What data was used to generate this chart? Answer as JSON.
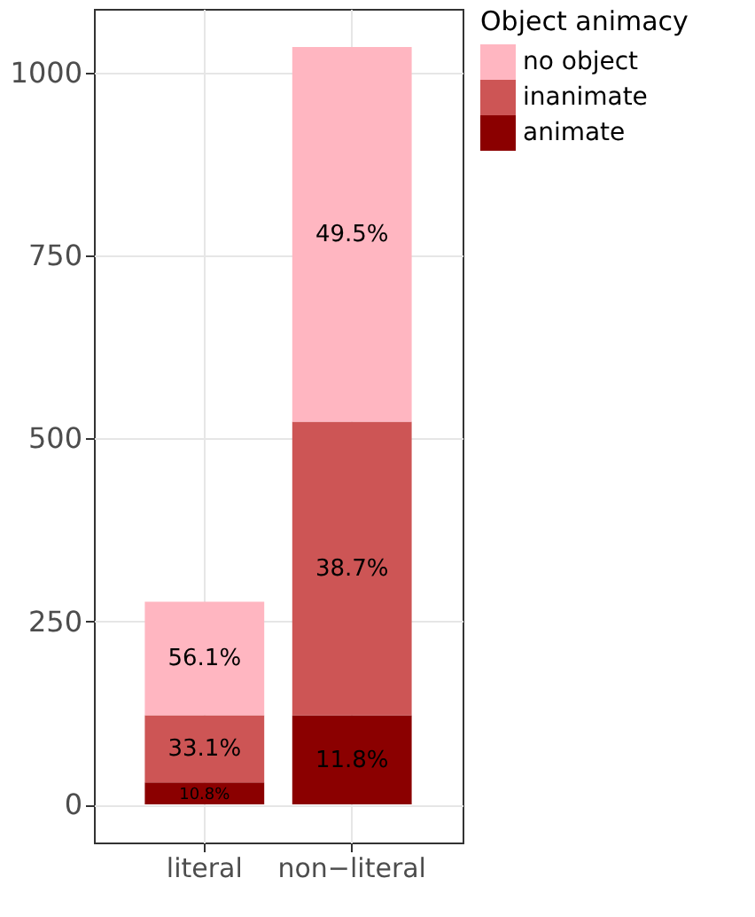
{
  "chart_data": {
    "type": "bar",
    "stacked": true,
    "categories": [
      "literal",
      "non−literal"
    ],
    "series": [
      {
        "name": "animate",
        "color": "#8b0000",
        "values": [
          30,
          122
        ]
      },
      {
        "name": "inanimate",
        "color": "#cd5555",
        "values": [
          92,
          401
        ]
      },
      {
        "name": "no object",
        "color": "#ffb6c1",
        "values": [
          155,
          512
        ]
      }
    ],
    "annotations": [
      "10.8%",
      "11.8%",
      "33.1%",
      "38.7%",
      "56.1%",
      "49.5%"
    ],
    "legend_title": "Object animacy",
    "legend": "right",
    "grid": true,
    "ylim": [
      -52,
      1087
    ],
    "yticks": [
      0,
      250,
      500,
      750,
      {
        "value": 1000,
        "label": "1000"
      }
    ]
  }
}
